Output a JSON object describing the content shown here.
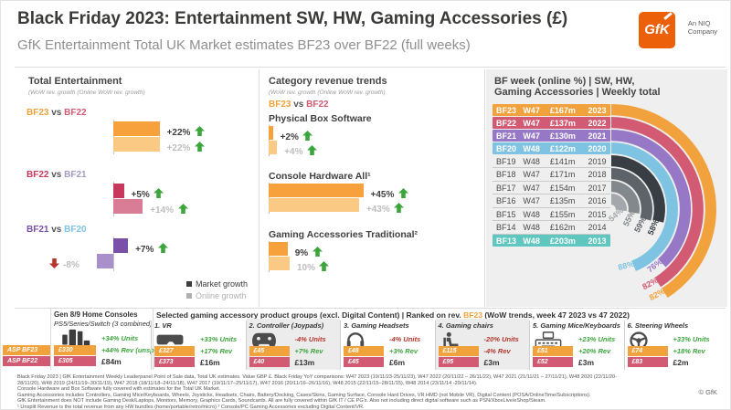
{
  "header": {
    "title": "Black Friday 2023: Entertainment SW, HW, Gaming Accessories (£)",
    "subtitle": "GfK Entertainment Total UK Market estimates BF23 over BF22 (full weeks)",
    "logo": {
      "text": "GfK",
      "tagline1": "An NIQ",
      "tagline2": "Company",
      "color": "#eb6009"
    }
  },
  "left_panel": {
    "title": "Total Entertainment",
    "subtitle": "(WoW rev. growth (Online WoW rev. growth)",
    "groups": [
      {
        "label_a": "BF23",
        "vs": "vs",
        "label_b": "BF22",
        "color_a": "#f2a23c",
        "color_b": "#d25b73",
        "market": {
          "pct": "+22%",
          "value": 22,
          "positive": true,
          "color": "#f7a13c"
        },
        "online": {
          "pct": "+22%",
          "value": 22,
          "positive": true,
          "color": "#fac983"
        }
      },
      {
        "label_a": "BF22",
        "vs": "vs",
        "label_b": "BF21",
        "color_a": "#c8385c",
        "color_b": "#a49bc0",
        "market": {
          "pct": "+5%",
          "value": 5,
          "positive": true,
          "color": "#c8385c"
        },
        "online": {
          "pct": "+14%",
          "value": 14,
          "positive": true,
          "color": "#d97c95"
        }
      },
      {
        "label_a": "BF21",
        "vs": "vs",
        "label_b": "BF20",
        "color_a": "#7a50a8",
        "color_b": "#7ec3e2",
        "market": {
          "pct": "+7%",
          "value": 7,
          "positive": true,
          "color": "#7a50a8"
        },
        "online": {
          "pct": "-8%",
          "value": -8,
          "positive": false,
          "color": "#a98fcc"
        }
      }
    ],
    "legend": [
      {
        "label": "Market growth",
        "color": "#3d3d3d",
        "text_color": "#3d3d3d"
      },
      {
        "label": "Online growth",
        "color": "#b0b0b0",
        "text_color": "#b0b0b0"
      }
    ]
  },
  "middle_panel": {
    "title": "Category revenue trends",
    "subtitle": "(WoW rev. growth (Online WoW rev. growth)",
    "comparison": {
      "a": "BF23",
      "vs": "vs",
      "b": "BF22",
      "color_a": "#f2a23c",
      "color_b": "#d25b73"
    },
    "categories": [
      {
        "name": "Physical Box Software",
        "market": {
          "pct": "+2%",
          "value": 2,
          "positive": true,
          "color": "#f7a13c"
        },
        "online": {
          "pct": "+4%",
          "value": 4,
          "positive": true,
          "color": "#fac983"
        }
      },
      {
        "name": "Console Hardware All¹",
        "market": {
          "pct": "+45%",
          "value": 45,
          "positive": true,
          "color": "#f7a13c"
        },
        "online": {
          "pct": "+43%",
          "value": 43,
          "positive": true,
          "color": "#fac983"
        }
      },
      {
        "name": "Gaming Accessories Traditional²",
        "market": {
          "pct": "9%",
          "value": 9,
          "positive": true,
          "color": "#f7a13c"
        },
        "online": {
          "pct": "10%",
          "value": 10,
          "positive": true,
          "color": "#fac983"
        }
      }
    ]
  },
  "right_panel": {
    "title_line1": "BF week (online %) | SW, HW,",
    "title_line2": "Gaming Accessories | Weekly total",
    "rows": [
      {
        "bf": "BF23",
        "week": "W47",
        "value": "£167m",
        "year": "2023",
        "highlight": "#f2a23c",
        "arc_color": "#f2a23c",
        "online_pct": 82
      },
      {
        "bf": "BF22",
        "week": "W47",
        "value": "£137m",
        "year": "2022",
        "highlight": "#d25b73",
        "arc_color": "#d25b73",
        "online_pct": 82
      },
      {
        "bf": "BF21",
        "week": "W47",
        "value": "£130m",
        "year": "2021",
        "highlight": "#9678c6",
        "arc_color": "#9678c6",
        "online_pct": 76
      },
      {
        "bf": "BF20",
        "week": "W48",
        "value": "£122m",
        "year": "2020",
        "highlight": "#7ec3e2",
        "arc_color": "#7ec3e2",
        "online_pct": 88
      },
      {
        "bf": "BF19",
        "week": "W48",
        "value": "£141m",
        "year": "2019",
        "highlight": null,
        "arc_color": "#383e44",
        "online_pct": 58
      },
      {
        "bf": "BF18",
        "week": "W47",
        "value": "£171m",
        "year": "2018",
        "highlight": null,
        "arc_color": "#5d6368",
        "online_pct": 59
      },
      {
        "bf": "BF17",
        "week": "W47",
        "value": "£154m",
        "year": "2017",
        "highlight": null,
        "arc_color": "#83888d",
        "online_pct": 55
      },
      {
        "bf": "BF16",
        "week": "W47",
        "value": "£135m",
        "year": "2016",
        "highlight": null,
        "arc_color": "#a4a8ac",
        "online_pct": 54
      },
      {
        "bf": "BF15",
        "week": "W48",
        "value": "£155m",
        "year": "2015",
        "highlight": null,
        "arc_color": "#c5c8ca",
        "online_pct": null
      },
      {
        "bf": "BF14",
        "week": "W48",
        "value": "£162m",
        "year": "2014",
        "highlight": null,
        "arc_color": "#dbddde",
        "online_pct": null
      },
      {
        "bf": "BF13",
        "week": "W48",
        "value": "£203m",
        "year": "2013",
        "highlight": "#5fc7bf",
        "arc_color": "#5fc7bf",
        "online_pct": null
      }
    ]
  },
  "bottom": {
    "asp_labels": [
      {
        "label": "ASP BF23",
        "color": "#f2a23c"
      },
      {
        "label": "ASP BF22",
        "color": "#d25b73"
      }
    ],
    "console_block": {
      "title": "Gen 8/9 Home Consoles",
      "subtitle": "PS5/Series/Switch (3 combined)",
      "icon": "console-icon",
      "asp_bf23": "£330",
      "asp_bf22": "£305",
      "units": "+34% Units",
      "units_positive": true,
      "rev": "+44% Rev (unsplit)",
      "rev_positive": true,
      "revenue": "£84m"
    },
    "section_title": {
      "pre": "Selected gaming accessory product groups (excl. Digital Content) | Ranked on rev. ",
      "highlight": "BF23",
      "post": " (WoW trends, week 47 2023 vs 47 2022)",
      "highlight_color": "#f2a23c"
    },
    "cards": [
      {
        "title": "1. VR",
        "icon": "vr-icon",
        "asp_bf23": "£327",
        "asp_bf22": "£373",
        "units": "+33% Units",
        "units_positive": true,
        "rev": "+17% Rev",
        "rev_positive": true,
        "revenue": "£16m",
        "gray": false
      },
      {
        "title": "2. Controller (Joypads)",
        "icon": "gamepad-icon",
        "asp_bf23": "£45",
        "asp_bf22": "£40",
        "units": "-4% Units",
        "units_positive": false,
        "rev": "+7% Rev",
        "rev_positive": true,
        "revenue": "£13m",
        "gray": true
      },
      {
        "title": "3. Gaming Headsets",
        "icon": "headset-icon",
        "asp_bf23": "£48",
        "asp_bf22": "£45",
        "units": "-4% Units",
        "units_positive": false,
        "rev": "+3% Rev",
        "rev_positive": true,
        "revenue": "£6m",
        "gray": false
      },
      {
        "title": "4. Gaming chairs",
        "icon": "chair-icon",
        "asp_bf23": "£115",
        "asp_bf22": "£95",
        "units": "-20% Units",
        "units_positive": false,
        "rev": "-4% Rev",
        "rev_positive": false,
        "revenue": "£3m",
        "gray": true
      },
      {
        "title": "5. Gaming Mice/Keyboards",
        "icon": "keyboard-icon",
        "asp_bf23": "£51",
        "asp_bf22": "£52",
        "units": "+23% Units",
        "units_positive": true,
        "rev": "+20% Rev",
        "rev_positive": true,
        "revenue": "£3m",
        "gray": false
      },
      {
        "title": "6. Steering Wheels",
        "icon": "steering-wheel-icon",
        "asp_bf23": "£74",
        "asp_bf22": "£83",
        "units": "+33% Units",
        "units_positive": true,
        "rev": "+18% Rev",
        "rev_positive": true,
        "revenue": "£2m",
        "gray": false
      }
    ]
  },
  "footnotes": [
    "Black Friday 2023 | GfK Entertainment Weekly Leaderpanel Point of Sale data, Total UK estimates. Value GBP £. Black Friday YoY comparisons: W47 2023 (19/11/23-25/11/23), W47 2022 (20/11/22 – 26/11/22), W47 2021 (21/11/21 – 27/11/21), W48 2020 (22/11/20-",
    "28/11/20), W48 2019 (24/11/19–30/11/19), W47 2018 (18/11/18–24/11/18), W47 2017 (19/11/17–25/11/17), W47 2016 (20/11/16–26/11/16), W48 2015 (22/11/15–28/11/15), W48 2014 (23/11/14 -29/11/14).",
    "Console Hardware and Box Software fully covered with estimates for the Total UK Market.",
    "Gaming Accessories includes Controllers, Gaming Mice/Keyboards, Wheels, Joysticks, Headsets, Chairs, Battery/Docking, Cases/Skins, Gaming Surface, Console Hard Drives, VR HMD (not Mobile VR), Digital Content (POSA/OnlineTime/Subscriptions).",
    "GfK Entertainment does NOT include Gaming Desk/Laptops, Monitors, Memory, Graphics Cards, Soundcards.  All are fully covered within GfK IT / CE PG's.  Also not including direct digital software such as PSN/XboxLive/eShop/Steam.",
    "¹ Unsplit Revenue is the total revenue from any HW bundles (home/portable/retro/micro) ² Console/PC Gaming Accessories excluding Digital Content/VR."
  ],
  "copyright": "© GfK",
  "chart_data": [
    {
      "type": "bar",
      "title": "Total Entertainment (WoW rev. growth / Online WoW rev. growth)",
      "categories": [
        "BF23 vs BF22",
        "BF22 vs BF21",
        "BF21 vs BF20"
      ],
      "series": [
        {
          "name": "Market growth",
          "values": [
            22,
            5,
            7
          ]
        },
        {
          "name": "Online growth",
          "values": [
            22,
            14,
            -8
          ]
        }
      ],
      "unit": "%",
      "legend_position": "bottom-right",
      "grid": false
    },
    {
      "type": "bar",
      "title": "Category revenue trends BF23 vs BF22",
      "categories": [
        "Physical Box Software",
        "Console Hardware All¹",
        "Gaming Accessories Traditional²"
      ],
      "series": [
        {
          "name": "Market growth",
          "values": [
            2,
            45,
            9
          ]
        },
        {
          "name": "Online growth",
          "values": [
            4,
            43,
            10
          ]
        }
      ],
      "unit": "%",
      "grid": false
    },
    {
      "type": "table",
      "title": "BF week (online %) | SW, HW, Gaming Accessories | Weekly total",
      "columns": [
        "BF week",
        "Week",
        "Weekly total",
        "Year",
        "Online % (radial arc)"
      ],
      "rows": [
        [
          "BF23",
          "W47",
          "£167m",
          2023,
          82
        ],
        [
          "BF22",
          "W47",
          "£137m",
          2022,
          82
        ],
        [
          "BF21",
          "W47",
          "£130m",
          2021,
          76
        ],
        [
          "BF20",
          "W48",
          "£122m",
          2020,
          88
        ],
        [
          "BF19",
          "W48",
          "£141m",
          2019,
          58
        ],
        [
          "BF18",
          "W47",
          "£171m",
          2018,
          59
        ],
        [
          "BF17",
          "W47",
          "£154m",
          2017,
          55
        ],
        [
          "BF16",
          "W47",
          "£135m",
          2016,
          54
        ],
        [
          "BF15",
          "W48",
          "£155m",
          2015,
          null
        ],
        [
          "BF14",
          "W48",
          "£162m",
          2014,
          null
        ],
        [
          "BF13",
          "W48",
          "£203m",
          2013,
          null
        ]
      ]
    }
  ]
}
